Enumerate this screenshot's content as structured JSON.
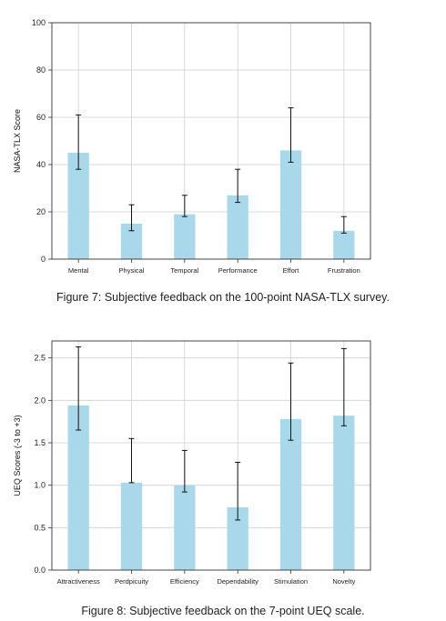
{
  "chart_data": [
    {
      "type": "bar",
      "categories": [
        "Mental",
        "Physical",
        "Temporal",
        "Performance",
        "Effort",
        "Frustration"
      ],
      "values": [
        45,
        15,
        19,
        27,
        46,
        12
      ],
      "error_low": [
        38,
        12,
        18,
        24,
        41,
        11
      ],
      "error_high": [
        61,
        23,
        27,
        38,
        64,
        18
      ],
      "ylabel": "NASA-TLX Score",
      "ylim": [
        0,
        100
      ],
      "yticks": [
        "0",
        "20",
        "40",
        "60",
        "80",
        "100"
      ],
      "grid": true,
      "bar_color": "#a8d8ea",
      "caption": "Figure 7: Subjective feedback on the 100-point NASA-TLX survey."
    },
    {
      "type": "bar",
      "categories": [
        "Attractiveness",
        "Perdpicuity",
        "Efficiency",
        "Dependability",
        "Stimulation",
        "Novelty"
      ],
      "values": [
        1.94,
        1.03,
        1.0,
        0.74,
        1.78,
        1.82
      ],
      "error_low": [
        1.65,
        1.03,
        0.92,
        0.59,
        1.53,
        1.7
      ],
      "error_high": [
        2.63,
        1.55,
        1.41,
        1.27,
        2.44,
        2.61
      ],
      "ylabel": "UEQ Scores (-3 to +3)",
      "ylim": [
        0,
        2.7
      ],
      "yticks": [
        "0.0",
        "0.5",
        "1.0",
        "1.5",
        "2.0",
        "2.5"
      ],
      "grid": true,
      "bar_color": "#a8d8ea",
      "caption": "Figure 8: Subjective feedback on the 7-point UEQ scale."
    }
  ]
}
